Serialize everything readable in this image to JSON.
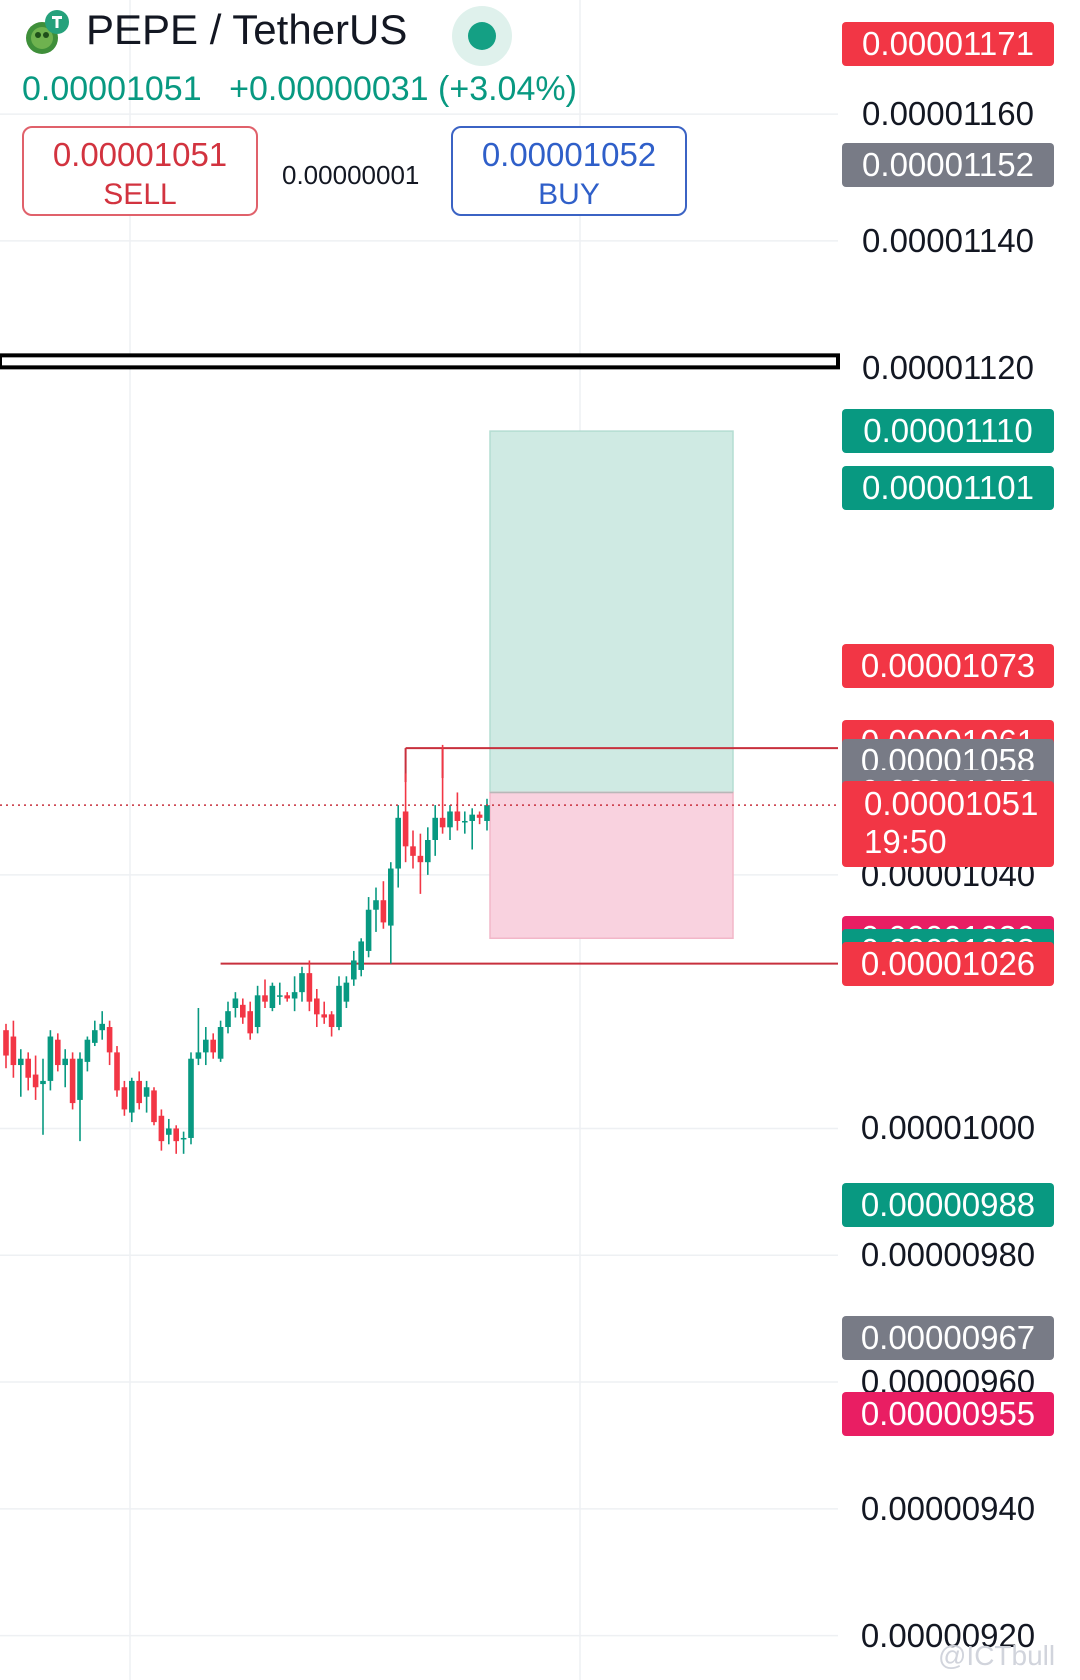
{
  "header": {
    "pair_title": "PEPE / TetherUS",
    "last_price": "0.00001051",
    "change": "+0.00000031 (+3.04%)",
    "sell_price": "0.00001051",
    "sell_label": "SELL",
    "spread": "0.00000001",
    "buy_price": "0.00001052",
    "buy_label": "BUY",
    "icon": "pepe-tether-icon"
  },
  "colors": {
    "up": "#089981",
    "down": "#f23645",
    "target_zone": "#cfeae3",
    "stop_zone": "#f9d2df"
  },
  "chart_data": {
    "type": "candlestick",
    "ylim": [
      9.13e-06,
      1.178e-05
    ],
    "y_ticks": [
      "0.00001160",
      "0.00001140",
      "0.00001120",
      "0.00001040",
      "0.00001000",
      "0.00000980",
      "0.00000960",
      "0.00000940",
      "0.00000920"
    ],
    "price_labels": [
      {
        "text": "0.00001171",
        "style": "red",
        "value": 1.171e-05
      },
      {
        "text": "0.00001152",
        "style": "gray",
        "value": 1.152e-05
      },
      {
        "text": "0.00001110",
        "style": "green",
        "value": 1.11e-05
      },
      {
        "text": "0.00001101",
        "style": "green",
        "value": 1.101e-05
      },
      {
        "text": "0.00001073",
        "style": "red",
        "value": 1.073e-05
      },
      {
        "text": "0.00001061",
        "style": "red",
        "value": 1.061e-05
      },
      {
        "text": "0.00001058",
        "style": "gray",
        "value": 1.058e-05
      },
      {
        "text": "0.00001053",
        "style": "gray",
        "value": 1.053e-05
      },
      {
        "text": "0.00001030",
        "style": "pink",
        "value": 1.03e-05
      },
      {
        "text": "0.00001028",
        "style": "green",
        "value": 1.028e-05
      },
      {
        "text": "0.00001026",
        "style": "red",
        "value": 1.026e-05
      },
      {
        "text": "0.00000988",
        "style": "green",
        "value": 9.88e-06
      },
      {
        "text": "0.00000967",
        "style": "gray",
        "value": 9.67e-06
      },
      {
        "text": "0.00000955",
        "style": "pink",
        "value": 9.55e-06
      }
    ],
    "current_price": {
      "value": 1.051e-05,
      "text": "0.00001051",
      "countdown": "19:50"
    },
    "horizontal_levels": [
      {
        "value": 1.121e-05,
        "kind": "thick-black"
      },
      {
        "value": 1.06e-05,
        "kind": "red-thin"
      },
      {
        "value": 1.026e-05,
        "kind": "red-thin"
      }
    ],
    "position": {
      "entry": 1.053e-05,
      "target": 1.11e-05,
      "stop": 1.03e-05
    },
    "candles": [
      {
        "o": 1.0155,
        "h": 1.0165,
        "l": 1.0095,
        "c": 1.0115
      },
      {
        "o": 1.0145,
        "h": 1.017,
        "l": 1.008,
        "c": 1.01
      },
      {
        "o": 1.01,
        "h": 1.0125,
        "l": 1.005,
        "c": 1.011
      },
      {
        "o": 1.011,
        "h": 1.012,
        "l": 1.006,
        "c": 1.008
      },
      {
        "o": 1.0085,
        "h": 1.0115,
        "l": 1.0045,
        "c": 1.0065
      },
      {
        "o": 1.007,
        "h": 1.011,
        "l": 0.999,
        "c": 1.0075
      },
      {
        "o": 1.0075,
        "h": 1.0155,
        "l": 1.006,
        "c": 1.0145
      },
      {
        "o": 1.014,
        "h": 1.015,
        "l": 1.009,
        "c": 1.01
      },
      {
        "o": 1.01,
        "h": 1.0125,
        "l": 1.0065,
        "c": 1.011
      },
      {
        "o": 1.011,
        "h": 1.012,
        "l": 1.003,
        "c": 1.004
      },
      {
        "o": 1.0045,
        "h": 1.012,
        "l": 0.998,
        "c": 1.011
      },
      {
        "o": 1.0105,
        "h": 1.0145,
        "l": 1.009,
        "c": 1.014
      },
      {
        "o": 1.0135,
        "h": 1.017,
        "l": 1.013,
        "c": 1.0155
      },
      {
        "o": 1.0155,
        "h": 1.0185,
        "l": 1.014,
        "c": 1.0165
      },
      {
        "o": 1.016,
        "h": 1.017,
        "l": 1.01,
        "c": 1.012
      },
      {
        "o": 1.012,
        "h": 1.013,
        "l": 1.005,
        "c": 1.006
      },
      {
        "o": 1.0065,
        "h": 1.0075,
        "l": 1.002,
        "c": 1.003
      },
      {
        "o": 1.0025,
        "h": 1.008,
        "l": 1.001,
        "c": 1.0075
      },
      {
        "o": 1.0075,
        "h": 1.009,
        "l": 1.003,
        "c": 1.004
      },
      {
        "o": 1.005,
        "h": 1.0075,
        "l": 1.0025,
        "c": 1.0065
      },
      {
        "o": 1.006,
        "h": 1.0065,
        "l": 1.0005,
        "c": 1.001
      },
      {
        "o": 1.002,
        "h": 1.003,
        "l": 0.9965,
        "c": 0.998
      },
      {
        "o": 0.999,
        "h": 1.0015,
        "l": 0.9975,
        "c": 1.0
      },
      {
        "o": 1.0,
        "h": 1.0005,
        "l": 0.996,
        "c": 0.998
      },
      {
        "o": 0.9985,
        "h": 0.9995,
        "l": 0.996,
        "c": 0.9985
      },
      {
        "o": 0.9985,
        "h": 1.012,
        "l": 0.9975,
        "c": 1.011
      },
      {
        "o": 1.011,
        "h": 1.019,
        "l": 1.01,
        "c": 1.012
      },
      {
        "o": 1.012,
        "h": 1.016,
        "l": 1.01,
        "c": 1.014
      },
      {
        "o": 1.014,
        "h": 1.015,
        "l": 1.011,
        "c": 1.012
      },
      {
        "o": 1.011,
        "h": 1.017,
        "l": 1.0105,
        "c": 1.016
      },
      {
        "o": 1.016,
        "h": 1.02,
        "l": 1.015,
        "c": 1.0185
      },
      {
        "o": 1.019,
        "h": 1.0215,
        "l": 1.0175,
        "c": 1.0205
      },
      {
        "o": 1.0195,
        "h": 1.0205,
        "l": 1.0165,
        "c": 1.0175
      },
      {
        "o": 1.0185,
        "h": 1.02,
        "l": 1.014,
        "c": 1.015
      },
      {
        "o": 1.016,
        "h": 1.0225,
        "l": 1.015,
        "c": 1.021
      },
      {
        "o": 1.021,
        "h": 1.0235,
        "l": 1.019,
        "c": 1.02
      },
      {
        "o": 1.019,
        "h": 1.023,
        "l": 1.0185,
        "c": 1.0225
      },
      {
        "o": 1.021,
        "h": 1.023,
        "l": 1.0195,
        "c": 1.021
      },
      {
        "o": 1.021,
        "h": 1.0215,
        "l": 1.02,
        "c": 1.0205
      },
      {
        "o": 1.0205,
        "h": 1.024,
        "l": 1.0185,
        "c": 1.0215
      },
      {
        "o": 1.0215,
        "h": 1.0255,
        "l": 1.02,
        "c": 1.0245
      },
      {
        "o": 1.0245,
        "h": 1.0265,
        "l": 1.0185,
        "c": 1.02
      },
      {
        "o": 1.0205,
        "h": 1.022,
        "l": 1.016,
        "c": 1.018
      },
      {
        "o": 1.018,
        "h": 1.02,
        "l": 1.0165,
        "c": 1.0175
      },
      {
        "o": 1.018,
        "h": 1.0185,
        "l": 1.0145,
        "c": 1.016
      },
      {
        "o": 1.016,
        "h": 1.024,
        "l": 1.0155,
        "c": 1.0225
      },
      {
        "o": 1.02,
        "h": 1.024,
        "l": 1.019,
        "c": 1.023
      },
      {
        "o": 1.0235,
        "h": 1.028,
        "l": 1.0225,
        "c": 1.0265
      },
      {
        "o": 1.025,
        "h": 1.03,
        "l": 1.024,
        "c": 1.0295
      },
      {
        "o": 1.028,
        "h": 1.0365,
        "l": 1.027,
        "c": 1.0345
      },
      {
        "o": 1.0345,
        "h": 1.038,
        "l": 1.031,
        "c": 1.036
      },
      {
        "o": 1.036,
        "h": 1.039,
        "l": 1.0315,
        "c": 1.0325
      },
      {
        "o": 1.032,
        "h": 1.042,
        "l": 1.026,
        "c": 1.041
      },
      {
        "o": 1.041,
        "h": 1.051,
        "l": 1.038,
        "c": 1.049
      },
      {
        "o": 1.05,
        "h": 1.056,
        "l": 1.042,
        "c": 1.0445
      },
      {
        "o": 1.0445,
        "h": 1.047,
        "l": 1.041,
        "c": 1.043
      },
      {
        "o": 1.043,
        "h": 1.0465,
        "l": 1.037,
        "c": 1.042
      },
      {
        "o": 1.042,
        "h": 1.0475,
        "l": 1.04,
        "c": 1.0455
      },
      {
        "o": 1.0455,
        "h": 1.051,
        "l": 1.043,
        "c": 1.049
      },
      {
        "o": 1.049,
        "h": 1.0605,
        "l": 1.0465,
        "c": 1.0475
      },
      {
        "o": 1.0475,
        "h": 1.051,
        "l": 1.0455,
        "c": 1.05
      },
      {
        "o": 1.05,
        "h": 1.053,
        "l": 1.047,
        "c": 1.0485
      },
      {
        "o": 1.0485,
        "h": 1.05,
        "l": 1.0465,
        "c": 1.0485
      },
      {
        "o": 1.0485,
        "h": 1.0505,
        "l": 1.044,
        "c": 1.0495
      },
      {
        "o": 1.0495,
        "h": 1.05,
        "l": 1.048,
        "c": 1.049
      },
      {
        "o": 1.0485,
        "h": 1.052,
        "l": 1.047,
        "c": 1.051
      }
    ],
    "candle_scale_note": "candle o/h/l/c values are in units of 0.00001 (1.0 = 0.00001000)"
  },
  "watermark": "@ICTbull"
}
